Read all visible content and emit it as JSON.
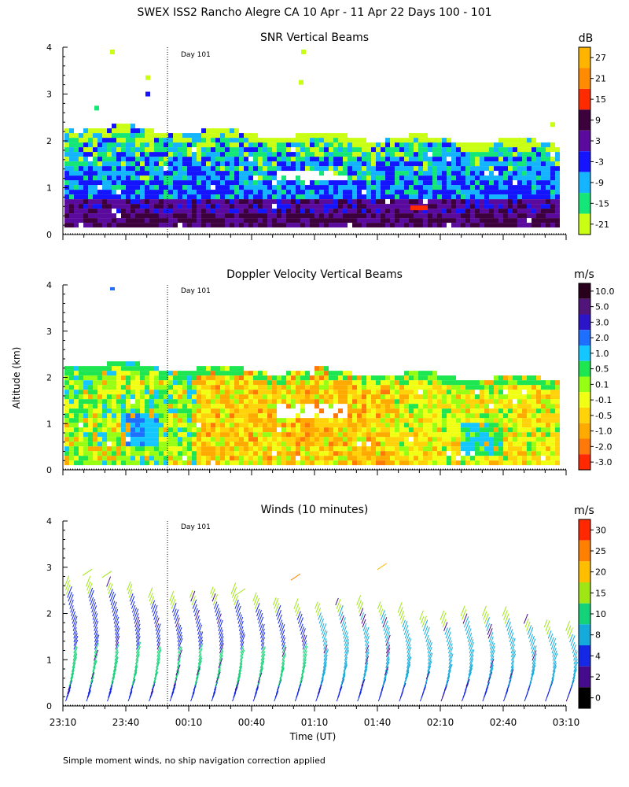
{
  "title": "SWEX ISS2 Rancho Alegre CA  10 Apr - 11 Apr 22 Days 100 - 101",
  "footnote": "Simple moment winds, no ship navigation correction applied",
  "day_label": "Day 101",
  "ylabel": "Altitude (km)",
  "xlabel": "Time (UT)",
  "chart_data": [
    {
      "type": "heatmap",
      "title": "SNR Vertical Beams",
      "unit": "dB",
      "ylim": [
        0,
        4
      ],
      "yticks": [
        "0",
        "1",
        "2",
        "3",
        "4"
      ],
      "colorbar": {
        "ticks": [
          "27",
          "21",
          "15",
          "9",
          "3",
          "-3",
          "-9",
          "-15",
          "-21"
        ],
        "colors": [
          "#ffb400",
          "#ff8c00",
          "#ff2a00",
          "#3c003c",
          "#5a0a9c",
          "#1414ff",
          "#14b4ff",
          "#14e678",
          "#c8ff14"
        ]
      }
    },
    {
      "type": "heatmap",
      "title": "Doppler Velocity Vertical Beams",
      "unit": "m/s",
      "ylim": [
        0,
        4
      ],
      "yticks": [
        "0",
        "1",
        "2",
        "3",
        "4"
      ],
      "colorbar": {
        "ticks": [
          "10.0",
          "5.0",
          "3.0",
          "2.0",
          "1.0",
          "0.5",
          "0.1",
          "-0.1",
          "-0.5",
          "-1.0",
          "-2.0",
          "-3.0"
        ],
        "colors": [
          "#28001e",
          "#50147a",
          "#2c14c8",
          "#1e6eff",
          "#14c8ff",
          "#1ee650",
          "#96ff14",
          "#f0ff14",
          "#ffd20a",
          "#ffaa00",
          "#ff780a",
          "#ff2800"
        ]
      }
    },
    {
      "type": "scatter",
      "title": "Winds (10 minutes)",
      "unit": "m/s",
      "ylim": [
        0,
        4
      ],
      "yticks": [
        "0",
        "1",
        "2",
        "3",
        "4"
      ],
      "colorbar": {
        "ticks": [
          "30",
          "25",
          "20",
          "15",
          "10",
          "8",
          "4",
          "2",
          "0"
        ],
        "colors": [
          "#ff2800",
          "#ff8000",
          "#ffbe00",
          "#a0e614",
          "#14d278",
          "#14aadc",
          "#1428e6",
          "#460a8c",
          "#000000"
        ]
      },
      "xticks": [
        "23:10",
        "23:40",
        "00:10",
        "00:40",
        "01:10",
        "01:40",
        "02:10",
        "02:40",
        "03:10"
      ]
    }
  ]
}
